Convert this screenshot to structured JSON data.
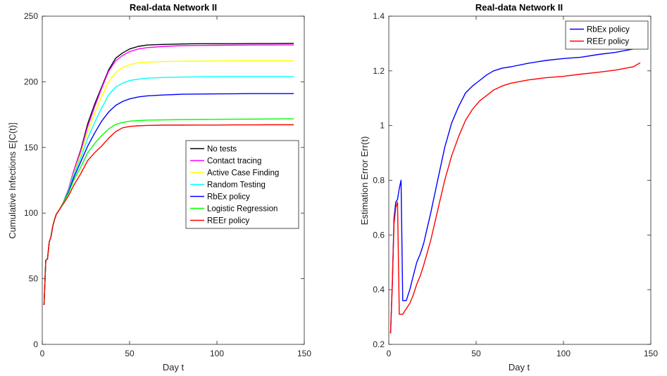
{
  "chart_data": [
    {
      "type": "line",
      "title": "Real-data Network II",
      "xlabel": "Day t",
      "ylabel": "Cumulative Infections E[C(t)]",
      "xlim": [
        0,
        150
      ],
      "ylim": [
        0,
        250
      ],
      "xticks": [
        0,
        50,
        100,
        150
      ],
      "yticks": [
        0,
        50,
        100,
        150,
        200,
        250
      ],
      "grid": false,
      "legend_placement": "center-right",
      "series": [
        {
          "name": "No tests",
          "color": "#000000",
          "x": [
            1,
            2,
            3,
            4,
            5,
            6,
            7,
            8,
            10,
            12,
            15,
            18,
            22,
            26,
            30,
            34,
            38,
            42,
            46,
            50,
            55,
            60,
            70,
            80,
            90,
            100,
            110,
            120,
            130,
            140,
            144
          ],
          "y": [
            30,
            64,
            65,
            78,
            82,
            90,
            95,
            99,
            103,
            108,
            118,
            132,
            148,
            168,
            183,
            196,
            209,
            218,
            222,
            225,
            227,
            228,
            228.5,
            228.8,
            229,
            229,
            229,
            229.2,
            229.2,
            229.3,
            229.3
          ]
        },
        {
          "name": "Contact tracing",
          "color": "#ff00ff",
          "x": [
            1,
            2,
            3,
            4,
            5,
            6,
            7,
            8,
            10,
            12,
            15,
            18,
            22,
            26,
            30,
            34,
            38,
            42,
            46,
            50,
            55,
            60,
            70,
            80,
            90,
            100,
            110,
            120,
            130,
            140,
            144
          ],
          "y": [
            30,
            64,
            65,
            78,
            82,
            90,
            95,
            99,
            103,
            108,
            118,
            132,
            147,
            166,
            181,
            195,
            208,
            216,
            220,
            223,
            225,
            226,
            227,
            227.5,
            227.7,
            227.8,
            227.9,
            228,
            228,
            228.1,
            228.1
          ]
        },
        {
          "name": "Active Case Finding",
          "color": "#ffff00",
          "x": [
            1,
            2,
            3,
            4,
            5,
            6,
            7,
            8,
            10,
            12,
            15,
            18,
            22,
            26,
            30,
            34,
            38,
            42,
            46,
            50,
            55,
            60,
            70,
            80,
            90,
            100,
            110,
            120,
            130,
            140,
            144
          ],
          "y": [
            30,
            64,
            65,
            78,
            82,
            90,
            95,
            99,
            103,
            108,
            117,
            130,
            145,
            162,
            176,
            189,
            200,
            207,
            211,
            213,
            214.5,
            215,
            215.5,
            215.7,
            215.8,
            215.9,
            216,
            216,
            216,
            216,
            216
          ]
        },
        {
          "name": "Random Testing",
          "color": "#00ffff",
          "x": [
            1,
            2,
            3,
            4,
            5,
            6,
            7,
            8,
            10,
            12,
            15,
            18,
            22,
            26,
            30,
            34,
            38,
            42,
            46,
            50,
            55,
            60,
            70,
            80,
            90,
            100,
            110,
            120,
            130,
            140,
            144
          ],
          "y": [
            30,
            64,
            65,
            78,
            82,
            90,
            95,
            99,
            103,
            108,
            117,
            129,
            142,
            157,
            169,
            180,
            190,
            196,
            199,
            201,
            202,
            202.8,
            203.3,
            203.6,
            203.8,
            203.9,
            204,
            204,
            204,
            204,
            204
          ]
        },
        {
          "name": "RbEx policy",
          "color": "#0000ff",
          "x": [
            1,
            2,
            3,
            4,
            5,
            6,
            7,
            8,
            10,
            12,
            15,
            18,
            22,
            26,
            30,
            34,
            38,
            42,
            46,
            50,
            55,
            60,
            70,
            80,
            90,
            100,
            110,
            120,
            130,
            140,
            144
          ],
          "y": [
            30,
            64,
            65,
            78,
            82,
            90,
            95,
            99,
            103,
            108,
            116,
            127,
            139,
            151,
            161,
            170,
            177,
            182,
            185,
            187,
            188.5,
            189.3,
            190,
            190.5,
            190.7,
            190.8,
            190.9,
            191,
            191,
            191,
            191
          ]
        },
        {
          "name": "Logistic Regression",
          "color": "#00ff00",
          "x": [
            1,
            2,
            3,
            4,
            5,
            6,
            7,
            8,
            10,
            12,
            15,
            18,
            22,
            26,
            30,
            34,
            38,
            42,
            46,
            50,
            55,
            60,
            70,
            80,
            90,
            100,
            110,
            120,
            130,
            140,
            144
          ],
          "y": [
            30,
            64,
            65,
            78,
            82,
            90,
            95,
            99,
            103,
            108,
            115,
            125,
            135,
            146,
            153,
            159,
            164,
            167.5,
            169,
            170,
            170.5,
            170.8,
            171,
            171.2,
            171.3,
            171.4,
            171.5,
            171.6,
            171.7,
            171.8,
            171.8
          ]
        },
        {
          "name": "REEr policy",
          "color": "#ff0000",
          "x": [
            1,
            2,
            3,
            4,
            5,
            6,
            7,
            8,
            10,
            12,
            15,
            18,
            22,
            26,
            30,
            34,
            38,
            42,
            46,
            50,
            55,
            60,
            70,
            80,
            90,
            100,
            110,
            120,
            130,
            140,
            144
          ],
          "y": [
            30,
            64,
            65,
            78,
            82,
            90,
            95,
            99,
            103,
            107,
            113,
            121,
            130,
            140,
            146,
            151,
            157,
            162,
            165,
            166,
            166.5,
            166.8,
            167,
            167,
            167.1,
            167.1,
            167.2,
            167.2,
            167.3,
            167.3,
            167.3
          ]
        }
      ]
    },
    {
      "type": "line",
      "title": "Real-data Network II",
      "xlabel": "Day t",
      "ylabel": "Estimation Error Err(t)",
      "xlim": [
        0,
        150
      ],
      "ylim": [
        0.2,
        1.4
      ],
      "xticks": [
        0,
        50,
        100,
        150
      ],
      "yticks": [
        0.2,
        0.4,
        0.6,
        0.8,
        1,
        1.2,
        1.4
      ],
      "grid": false,
      "legend_placement": "top-right",
      "series": [
        {
          "name": "RbEx policy",
          "color": "#0000ff",
          "x": [
            1,
            2,
            3,
            4,
            5,
            6,
            7,
            8,
            9,
            10,
            12,
            14,
            16,
            18,
            20,
            24,
            28,
            32,
            36,
            40,
            44,
            48,
            52,
            56,
            60,
            65,
            70,
            80,
            90,
            100,
            110,
            120,
            130,
            140,
            144
          ],
          "y": [
            0.24,
            0.42,
            0.66,
            0.72,
            0.73,
            0.77,
            0.8,
            0.36,
            0.36,
            0.36,
            0.4,
            0.45,
            0.5,
            0.53,
            0.57,
            0.68,
            0.8,
            0.92,
            1.01,
            1.07,
            1.12,
            1.145,
            1.165,
            1.185,
            1.2,
            1.21,
            1.215,
            1.228,
            1.238,
            1.245,
            1.25,
            1.26,
            1.268,
            1.28,
            1.288
          ]
        },
        {
          "name": "REEr policy",
          "color": "#ff0000",
          "x": [
            1,
            2,
            3,
            4,
            5,
            6,
            7,
            8,
            9,
            10,
            12,
            14,
            16,
            18,
            20,
            24,
            28,
            32,
            36,
            40,
            44,
            48,
            52,
            56,
            60,
            65,
            70,
            80,
            90,
            100,
            110,
            120,
            130,
            140,
            144
          ],
          "y": [
            0.24,
            0.42,
            0.64,
            0.7,
            0.72,
            0.31,
            0.31,
            0.31,
            0.32,
            0.33,
            0.35,
            0.38,
            0.42,
            0.45,
            0.49,
            0.58,
            0.69,
            0.8,
            0.89,
            0.96,
            1.02,
            1.06,
            1.09,
            1.11,
            1.13,
            1.145,
            1.155,
            1.167,
            1.175,
            1.18,
            1.188,
            1.195,
            1.203,
            1.215,
            1.23
          ]
        }
      ]
    }
  ]
}
